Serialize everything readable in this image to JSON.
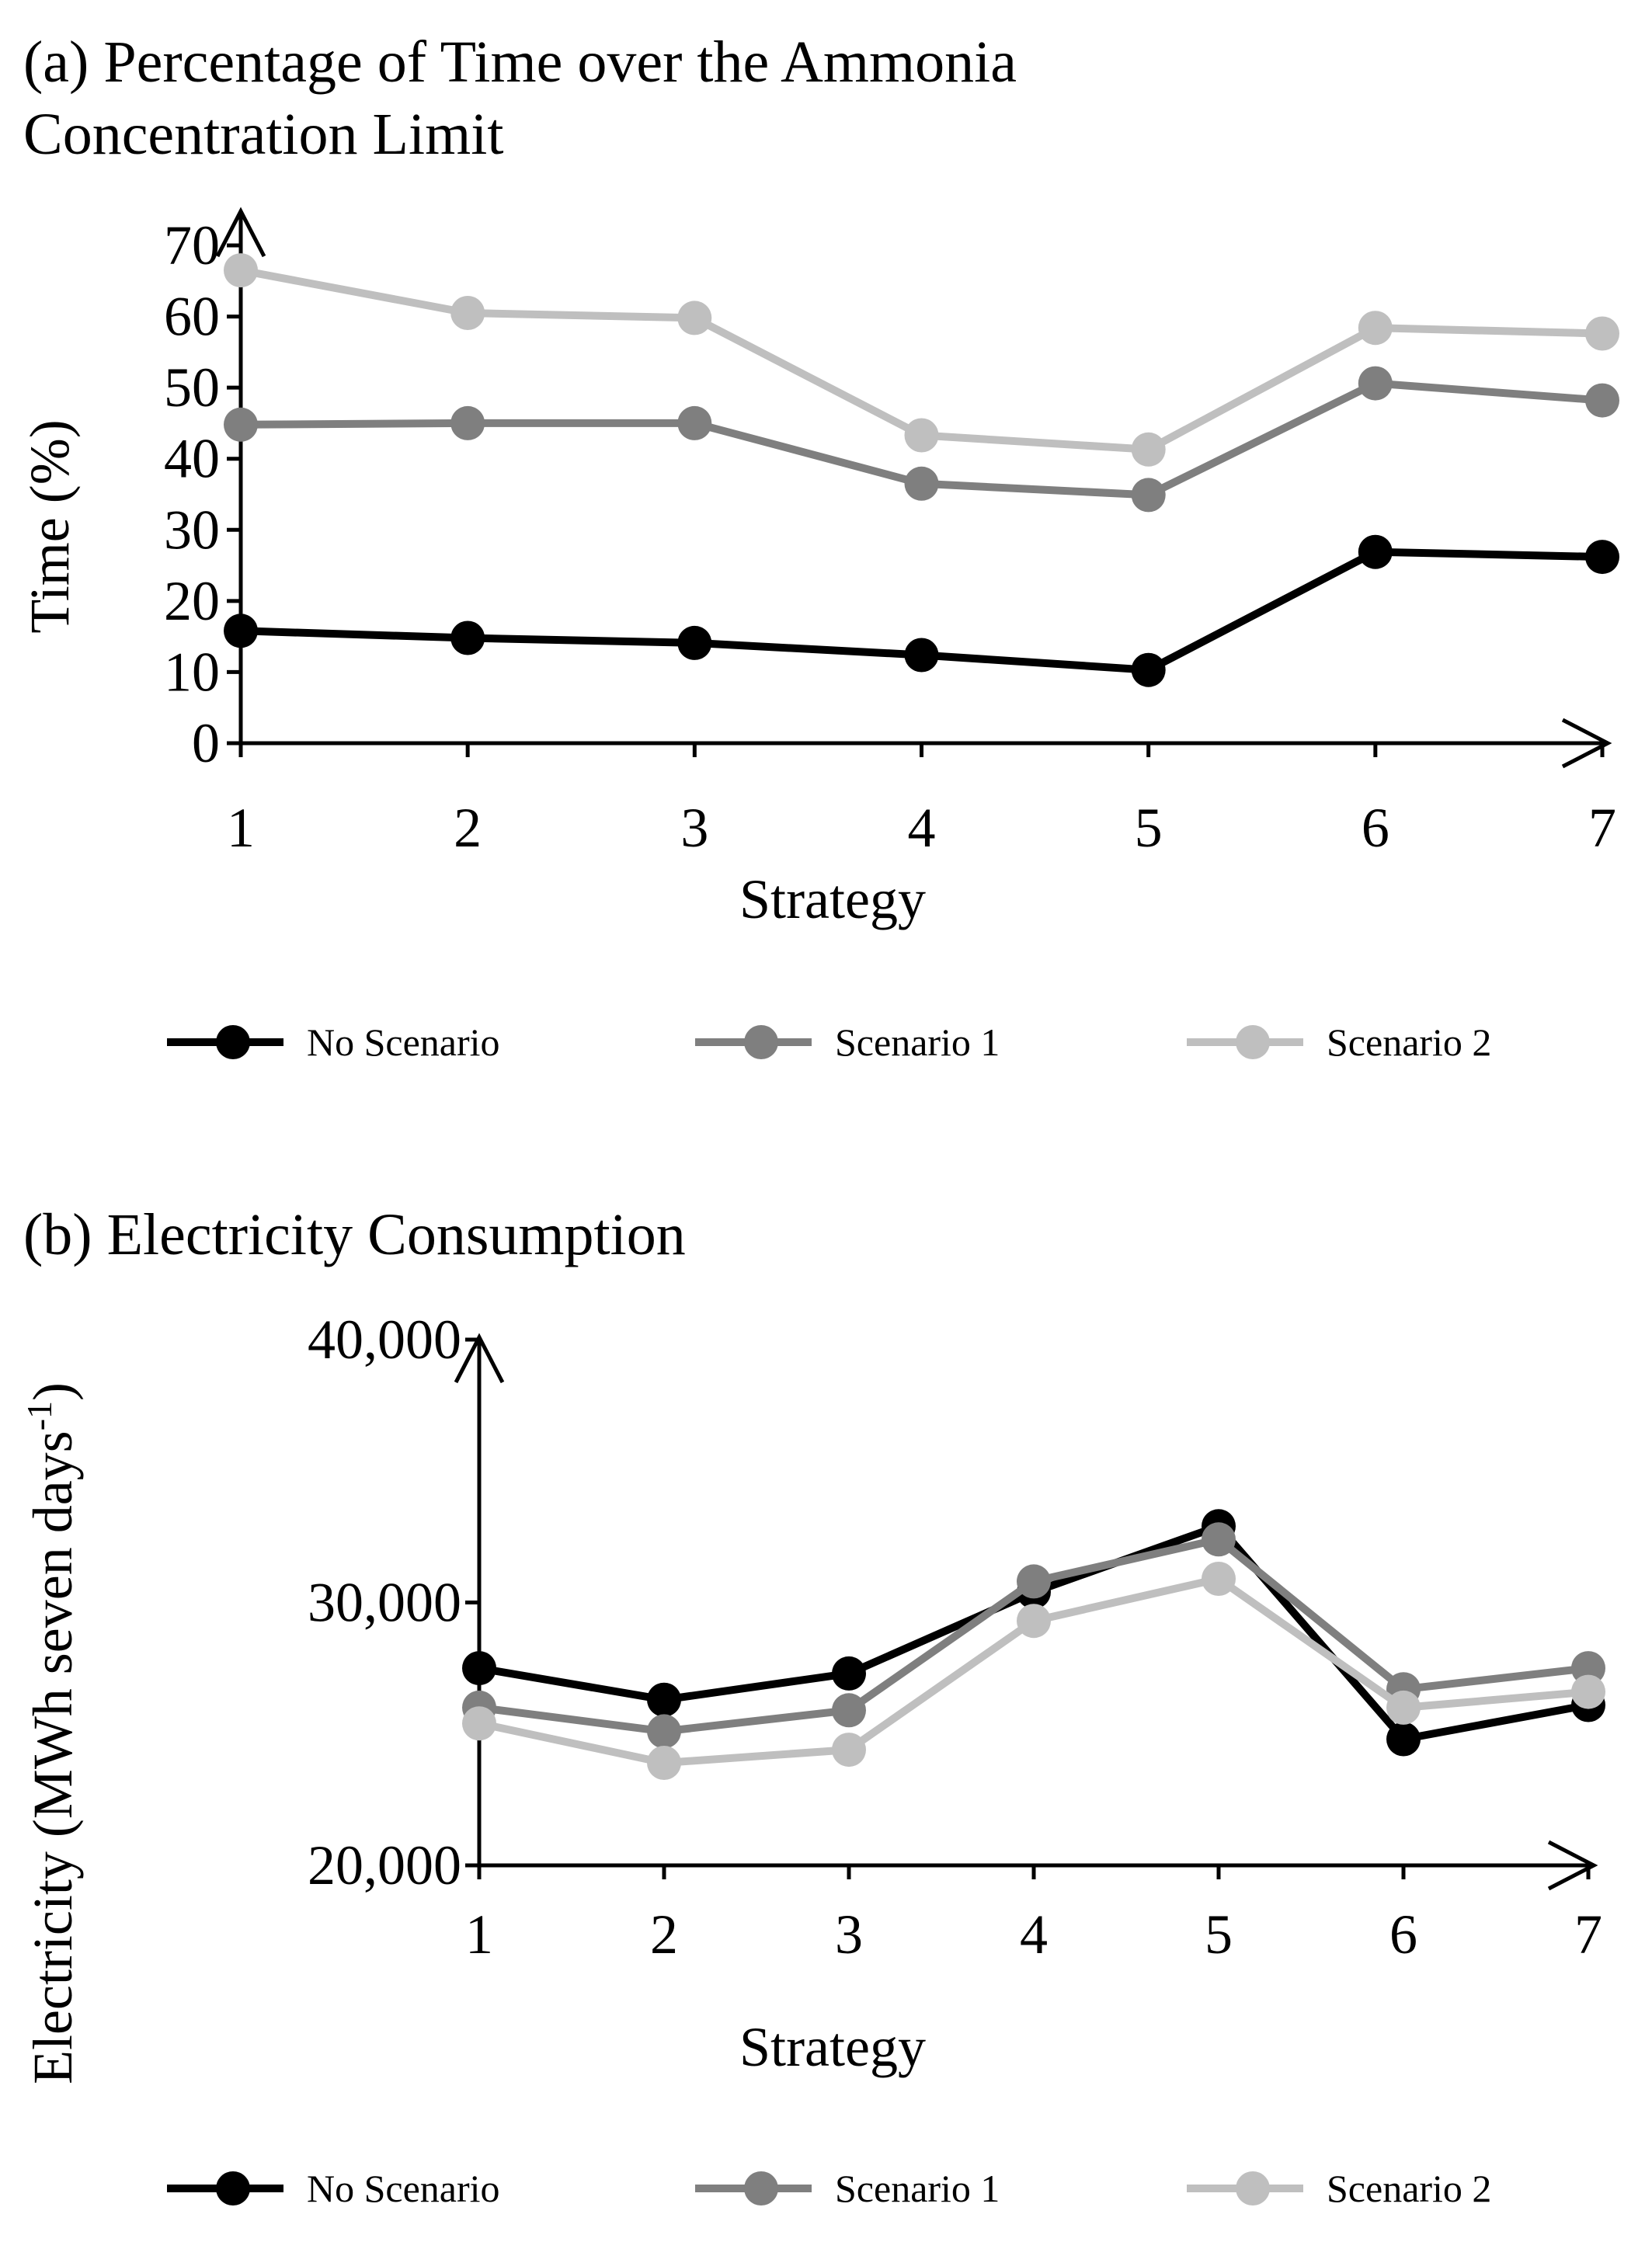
{
  "chart_data": [
    {
      "type": "line",
      "title": "(a) Percentage of Time over the Ammonia Concentration Limit",
      "title_lines": [
        "(a) Percentage of Time over the Ammonia",
        "Concentration Limit"
      ],
      "xlabel": "Strategy",
      "ylabel": "Time (%)",
      "categories": [
        "1",
        "2",
        "3",
        "4",
        "5",
        "6",
        "7"
      ],
      "ylim": [
        0,
        70
      ],
      "yticks": [
        0,
        10,
        20,
        30,
        40,
        50,
        60,
        70
      ],
      "ytick_labels": [
        "0",
        "10",
        "20",
        "30",
        "40",
        "50",
        "60",
        "70"
      ],
      "grid": false,
      "legend_position": "bottom",
      "series": [
        {
          "name": "No Scenario",
          "color": "#000000",
          "values": [
            15.8,
            14.8,
            14.1,
            12.4,
            10.3,
            26.9,
            26.2
          ]
        },
        {
          "name": "Scenario 1",
          "color": "#7f7f7f",
          "values": [
            44.8,
            45.0,
            45.0,
            36.5,
            34.9,
            50.6,
            48.2
          ]
        },
        {
          "name": "Scenario 2",
          "color": "#bfbfbf",
          "values": [
            66.5,
            60.5,
            59.8,
            43.3,
            41.3,
            58.4,
            57.6
          ]
        }
      ]
    },
    {
      "type": "line",
      "title": "(b) Electricity Consumption",
      "xlabel": "Strategy",
      "ylabel": "Electricity  (MWh seven  days",
      "ylabel_superscript": "-1",
      "ylabel_close": ")",
      "categories": [
        "1",
        "2",
        "3",
        "4",
        "5",
        "6",
        "7"
      ],
      "ylim": [
        20000,
        40000
      ],
      "yticks": [
        20000,
        30000,
        40000
      ],
      "ytick_labels": [
        "20,000",
        "30,000",
        "40,000"
      ],
      "grid": false,
      "legend_position": "bottom",
      "series": [
        {
          "name": "No Scenario",
          "color": "#000000",
          "values": [
            27500,
            26300,
            27300,
            30400,
            32900,
            24800,
            26100
          ]
        },
        {
          "name": "Scenario 1",
          "color": "#7f7f7f",
          "values": [
            26000,
            25100,
            25900,
            30800,
            32400,
            26700,
            27500
          ]
        },
        {
          "name": "Scenario 2",
          "color": "#bfbfbf",
          "values": [
            25400,
            23900,
            24400,
            29300,
            30900,
            26000,
            26600
          ]
        }
      ]
    }
  ]
}
